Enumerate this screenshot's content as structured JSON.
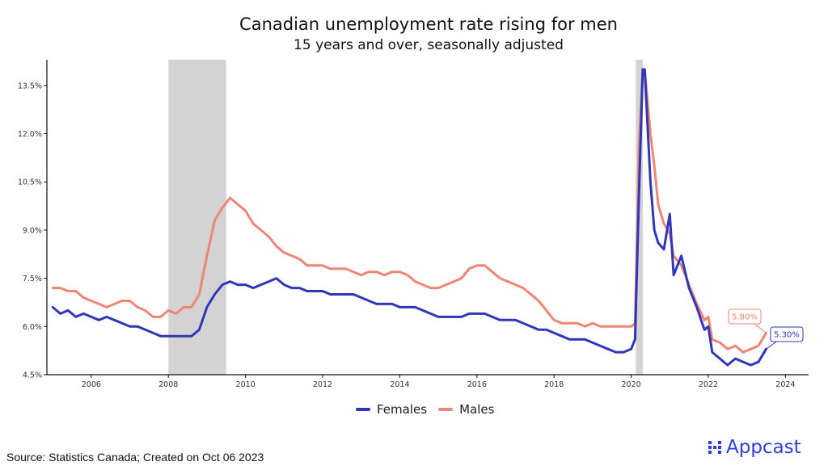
{
  "chart_data": {
    "type": "line",
    "title": "Canadian unemployment rate rising for men",
    "subtitle": "15 years and over, seasonally adjusted",
    "xlim": [
      2004.85,
      2024.6
    ],
    "ylim": [
      4.5,
      14.3
    ],
    "x_ticks": [
      2006,
      2008,
      2010,
      2012,
      2014,
      2016,
      2018,
      2020,
      2022,
      2024
    ],
    "y_ticks": [
      {
        "value": 4.5,
        "label": "4.5%"
      },
      {
        "value": 6.0,
        "label": "6.0%"
      },
      {
        "value": 7.5,
        "label": "7.5%"
      },
      {
        "value": 9.0,
        "label": "9.0%"
      },
      {
        "value": 10.5,
        "label": "10.5%"
      },
      {
        "value": 12.0,
        "label": "12.0%"
      },
      {
        "value": 13.5,
        "label": "13.5%"
      }
    ],
    "recessions": [
      [
        2008.0,
        2009.5
      ],
      [
        2020.12,
        2020.3
      ]
    ],
    "series": [
      {
        "name": "Females",
        "color": "#2f37b8",
        "end_label": "5.30%",
        "points": [
          [
            2005.0,
            6.6
          ],
          [
            2005.2,
            6.4
          ],
          [
            2005.4,
            6.5
          ],
          [
            2005.6,
            6.3
          ],
          [
            2005.8,
            6.4
          ],
          [
            2006.0,
            6.3
          ],
          [
            2006.2,
            6.2
          ],
          [
            2006.4,
            6.3
          ],
          [
            2006.6,
            6.2
          ],
          [
            2006.8,
            6.1
          ],
          [
            2007.0,
            6.0
          ],
          [
            2007.2,
            6.0
          ],
          [
            2007.4,
            5.9
          ],
          [
            2007.6,
            5.8
          ],
          [
            2007.8,
            5.7
          ],
          [
            2008.0,
            5.7
          ],
          [
            2008.2,
            5.7
          ],
          [
            2008.4,
            5.7
          ],
          [
            2008.6,
            5.7
          ],
          [
            2008.8,
            5.9
          ],
          [
            2009.0,
            6.6
          ],
          [
            2009.2,
            7.0
          ],
          [
            2009.4,
            7.3
          ],
          [
            2009.6,
            7.4
          ],
          [
            2009.8,
            7.3
          ],
          [
            2010.0,
            7.3
          ],
          [
            2010.2,
            7.2
          ],
          [
            2010.4,
            7.3
          ],
          [
            2010.6,
            7.4
          ],
          [
            2010.8,
            7.5
          ],
          [
            2011.0,
            7.3
          ],
          [
            2011.2,
            7.2
          ],
          [
            2011.4,
            7.2
          ],
          [
            2011.6,
            7.1
          ],
          [
            2011.8,
            7.1
          ],
          [
            2012.0,
            7.1
          ],
          [
            2012.2,
            7.0
          ],
          [
            2012.4,
            7.0
          ],
          [
            2012.6,
            7.0
          ],
          [
            2012.8,
            7.0
          ],
          [
            2013.0,
            6.9
          ],
          [
            2013.2,
            6.8
          ],
          [
            2013.4,
            6.7
          ],
          [
            2013.6,
            6.7
          ],
          [
            2013.8,
            6.7
          ],
          [
            2014.0,
            6.6
          ],
          [
            2014.2,
            6.6
          ],
          [
            2014.4,
            6.6
          ],
          [
            2014.6,
            6.5
          ],
          [
            2014.8,
            6.4
          ],
          [
            2015.0,
            6.3
          ],
          [
            2015.2,
            6.3
          ],
          [
            2015.4,
            6.3
          ],
          [
            2015.6,
            6.3
          ],
          [
            2015.8,
            6.4
          ],
          [
            2016.0,
            6.4
          ],
          [
            2016.2,
            6.4
          ],
          [
            2016.4,
            6.3
          ],
          [
            2016.6,
            6.2
          ],
          [
            2016.8,
            6.2
          ],
          [
            2017.0,
            6.2
          ],
          [
            2017.2,
            6.1
          ],
          [
            2017.4,
            6.0
          ],
          [
            2017.6,
            5.9
          ],
          [
            2017.8,
            5.9
          ],
          [
            2018.0,
            5.8
          ],
          [
            2018.2,
            5.7
          ],
          [
            2018.4,
            5.6
          ],
          [
            2018.6,
            5.6
          ],
          [
            2018.8,
            5.6
          ],
          [
            2019.0,
            5.5
          ],
          [
            2019.2,
            5.4
          ],
          [
            2019.4,
            5.3
          ],
          [
            2019.6,
            5.2
          ],
          [
            2019.8,
            5.2
          ],
          [
            2020.0,
            5.3
          ],
          [
            2020.1,
            5.6
          ],
          [
            2020.2,
            10.0
          ],
          [
            2020.3,
            14.0
          ],
          [
            2020.35,
            14.0
          ],
          [
            2020.5,
            10.5
          ],
          [
            2020.6,
            9.0
          ],
          [
            2020.7,
            8.6
          ],
          [
            2020.85,
            8.4
          ],
          [
            2021.0,
            9.5
          ],
          [
            2021.1,
            7.6
          ],
          [
            2021.3,
            8.2
          ],
          [
            2021.5,
            7.2
          ],
          [
            2021.7,
            6.6
          ],
          [
            2021.9,
            5.9
          ],
          [
            2022.0,
            6.0
          ],
          [
            2022.1,
            5.2
          ],
          [
            2022.3,
            5.0
          ],
          [
            2022.5,
            4.8
          ],
          [
            2022.7,
            5.0
          ],
          [
            2022.9,
            4.9
          ],
          [
            2023.1,
            4.8
          ],
          [
            2023.3,
            4.9
          ],
          [
            2023.5,
            5.3
          ]
        ]
      },
      {
        "name": "Males",
        "color": "#ef8575",
        "end_label": "5.80%",
        "points": [
          [
            2005.0,
            7.2
          ],
          [
            2005.2,
            7.2
          ],
          [
            2005.4,
            7.1
          ],
          [
            2005.6,
            7.1
          ],
          [
            2005.8,
            6.9
          ],
          [
            2006.0,
            6.8
          ],
          [
            2006.2,
            6.7
          ],
          [
            2006.4,
            6.6
          ],
          [
            2006.6,
            6.7
          ],
          [
            2006.8,
            6.8
          ],
          [
            2007.0,
            6.8
          ],
          [
            2007.2,
            6.6
          ],
          [
            2007.4,
            6.5
          ],
          [
            2007.6,
            6.3
          ],
          [
            2007.8,
            6.3
          ],
          [
            2008.0,
            6.5
          ],
          [
            2008.2,
            6.4
          ],
          [
            2008.4,
            6.6
          ],
          [
            2008.6,
            6.6
          ],
          [
            2008.8,
            7.0
          ],
          [
            2009.0,
            8.2
          ],
          [
            2009.2,
            9.3
          ],
          [
            2009.4,
            9.7
          ],
          [
            2009.6,
            10.0
          ],
          [
            2009.8,
            9.8
          ],
          [
            2010.0,
            9.6
          ],
          [
            2010.2,
            9.2
          ],
          [
            2010.4,
            9.0
          ],
          [
            2010.6,
            8.8
          ],
          [
            2010.8,
            8.5
          ],
          [
            2011.0,
            8.3
          ],
          [
            2011.2,
            8.2
          ],
          [
            2011.4,
            8.1
          ],
          [
            2011.6,
            7.9
          ],
          [
            2011.8,
            7.9
          ],
          [
            2012.0,
            7.9
          ],
          [
            2012.2,
            7.8
          ],
          [
            2012.4,
            7.8
          ],
          [
            2012.6,
            7.8
          ],
          [
            2012.8,
            7.7
          ],
          [
            2013.0,
            7.6
          ],
          [
            2013.2,
            7.7
          ],
          [
            2013.4,
            7.7
          ],
          [
            2013.6,
            7.6
          ],
          [
            2013.8,
            7.7
          ],
          [
            2014.0,
            7.7
          ],
          [
            2014.2,
            7.6
          ],
          [
            2014.4,
            7.4
          ],
          [
            2014.6,
            7.3
          ],
          [
            2014.8,
            7.2
          ],
          [
            2015.0,
            7.2
          ],
          [
            2015.2,
            7.3
          ],
          [
            2015.4,
            7.4
          ],
          [
            2015.6,
            7.5
          ],
          [
            2015.8,
            7.8
          ],
          [
            2016.0,
            7.9
          ],
          [
            2016.2,
            7.9
          ],
          [
            2016.4,
            7.7
          ],
          [
            2016.6,
            7.5
          ],
          [
            2016.8,
            7.4
          ],
          [
            2017.0,
            7.3
          ],
          [
            2017.2,
            7.2
          ],
          [
            2017.4,
            7.0
          ],
          [
            2017.6,
            6.8
          ],
          [
            2017.8,
            6.5
          ],
          [
            2018.0,
            6.2
          ],
          [
            2018.2,
            6.1
          ],
          [
            2018.4,
            6.1
          ],
          [
            2018.6,
            6.1
          ],
          [
            2018.8,
            6.0
          ],
          [
            2019.0,
            6.1
          ],
          [
            2019.2,
            6.0
          ],
          [
            2019.4,
            6.0
          ],
          [
            2019.6,
            6.0
          ],
          [
            2019.8,
            6.0
          ],
          [
            2020.0,
            6.0
          ],
          [
            2020.1,
            6.1
          ],
          [
            2020.2,
            11.5
          ],
          [
            2020.3,
            14.0
          ],
          [
            2020.35,
            14.0
          ],
          [
            2020.5,
            12.0
          ],
          [
            2020.6,
            11.0
          ],
          [
            2020.7,
            9.8
          ],
          [
            2020.85,
            9.2
          ],
          [
            2021.0,
            8.9
          ],
          [
            2021.1,
            8.2
          ],
          [
            2021.3,
            7.9
          ],
          [
            2021.5,
            7.3
          ],
          [
            2021.7,
            6.7
          ],
          [
            2021.9,
            6.2
          ],
          [
            2022.0,
            6.3
          ],
          [
            2022.1,
            5.6
          ],
          [
            2022.3,
            5.5
          ],
          [
            2022.5,
            5.3
          ],
          [
            2022.7,
            5.4
          ],
          [
            2022.9,
            5.2
          ],
          [
            2023.1,
            5.3
          ],
          [
            2023.3,
            5.4
          ],
          [
            2023.5,
            5.8
          ]
        ]
      }
    ]
  },
  "legend": {
    "females_label": "Females",
    "males_label": "Males",
    "females_color": "#2f37b8",
    "males_color": "#ef8575"
  },
  "footer": {
    "source": "Source: Statistics Canada; Created on Oct 06 2023",
    "brand": "Appcast"
  }
}
